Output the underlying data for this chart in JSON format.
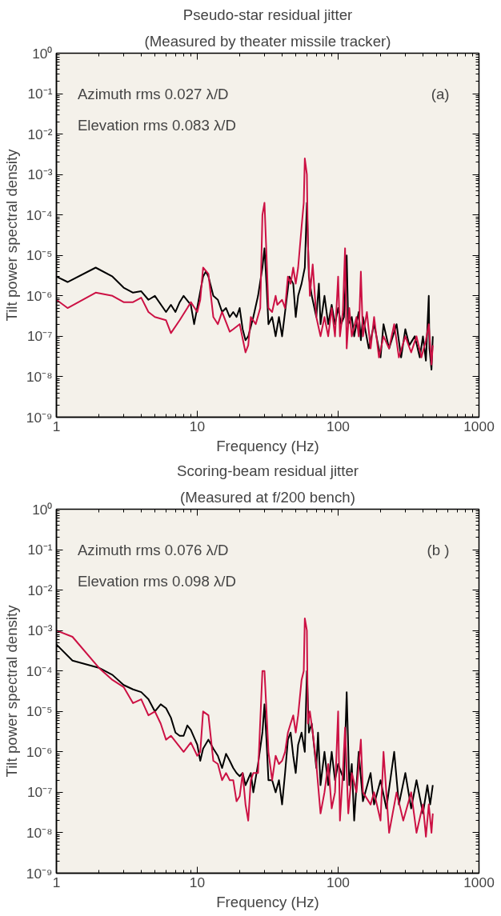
{
  "chart_data": [
    {
      "type": "line",
      "title": "Pseudo-star residual jitter",
      "subtitle": "(Measured by theater missile tracker)",
      "xlabel": "Frequency (Hz)",
      "ylabel": "Tilt power spectral density",
      "log": "xy",
      "xlim": [
        1,
        1000
      ],
      "ylim": [
        1e-09,
        1
      ],
      "xticks": [
        1,
        10,
        100,
        1000
      ],
      "yticks": [
        {
          "value": 1e-09,
          "label": "10⁻⁹"
        },
        {
          "value": 1e-08,
          "label": "10⁻⁸"
        },
        {
          "value": 1e-07,
          "label": "10⁻⁷"
        },
        {
          "value": 1e-06,
          "label": "10⁻⁶"
        },
        {
          "value": 1e-05,
          "label": "10⁻⁵"
        },
        {
          "value": 0.0001,
          "label": "10⁻⁴"
        },
        {
          "value": 0.001,
          "label": "10⁻³"
        },
        {
          "value": 0.01,
          "label": "10⁻²"
        },
        {
          "value": 0.1,
          "label": "10⁻¹"
        },
        {
          "value": 1,
          "label": "10⁰"
        }
      ],
      "annotations": [
        "Azimuth rms  0.027 λ/D",
        "Elevation rms  0.083 λ/D",
        "(a)"
      ],
      "series": [
        {
          "color": "#000000",
          "x": [
            1,
            1.2,
            1.9,
            2.5,
            3,
            3.5,
            4,
            4.5,
            5,
            6,
            6.5,
            7,
            7.5,
            8,
            9,
            9.5,
            11,
            11.5,
            12,
            13,
            14,
            15,
            16,
            17,
            18,
            19,
            20,
            21,
            22,
            23,
            25,
            27,
            29,
            30,
            31,
            32,
            34,
            36,
            38,
            40,
            42,
            44,
            45,
            48,
            50,
            52,
            55,
            58,
            60,
            62,
            65,
            70,
            73,
            75,
            80,
            85,
            90,
            95,
            100,
            105,
            110,
            115,
            118,
            125,
            130,
            140,
            145,
            150,
            165,
            180,
            200,
            210,
            230,
            260,
            280,
            300,
            320,
            350,
            380,
            400,
            420,
            440,
            445,
            460,
            470
          ],
          "values": [
            3e-06,
            2.2e-06,
            5e-06,
            3e-06,
            1.6e-06,
            1.2e-06,
            1.3e-06,
            8e-07,
            1e-06,
            4e-07,
            6e-07,
            4e-07,
            7e-07,
            1e-06,
            6e-07,
            2e-07,
            3e-06,
            4e-06,
            3e-06,
            1e-06,
            8e-07,
            4e-07,
            5e-07,
            3e-07,
            4e-07,
            3e-07,
            5e-07,
            1.5e-07,
            8e-08,
            1e-07,
            3e-07,
            1e-06,
            5e-06,
            1.5e-05,
            2e-06,
            2e-07,
            3e-07,
            1e-07,
            3e-07,
            1e-07,
            4e-07,
            1.5e-06,
            3e-06,
            2e-06,
            3e-07,
            1e-06,
            2e-06,
            5e-06,
            0.0002,
            3e-06,
            1e-06,
            3e-07,
            2e-06,
            2e-07,
            1e-06,
            2e-07,
            6e-07,
            2e-07,
            5e-07,
            2e-07,
            3e-07,
            1e-05,
            2e-07,
            3e-07,
            1e-07,
            4e-07,
            8e-08,
            3e-07,
            5e-08,
            2e-07,
            3e-08,
            2e-07,
            5e-08,
            2e-07,
            3e-08,
            1.5e-07,
            6e-08,
            1e-07,
            3e-08,
            1e-07,
            2.5e-08,
            1e-06,
            5e-08,
            1.5e-08,
            1e-07
          ]
        },
        {
          "color": "#cc1144",
          "x": [
            1,
            1.2,
            1.9,
            2.5,
            3,
            3.5,
            4,
            4.5,
            5,
            6,
            6.5,
            7.5,
            8.5,
            9,
            10,
            10.5,
            11,
            12,
            13,
            14,
            15,
            17,
            18,
            20,
            22,
            23,
            24,
            26,
            28,
            29,
            30,
            31,
            32,
            34,
            36,
            37,
            40,
            42,
            44,
            46,
            48,
            50,
            52,
            55,
            57,
            58,
            60,
            61,
            63,
            66,
            70,
            75,
            80,
            85,
            90,
            95,
            100,
            103,
            108,
            112,
            115,
            120,
            125,
            135,
            140,
            145,
            150,
            160,
            170,
            180,
            195,
            210,
            230,
            250,
            270,
            300,
            330,
            360,
            390,
            420,
            440,
            460,
            470
          ],
          "values": [
            8e-07,
            5e-07,
            1.2e-06,
            1e-06,
            7e-07,
            7e-07,
            9e-07,
            4e-07,
            3e-07,
            2.5e-07,
            1.2e-07,
            2.5e-07,
            5e-07,
            7e-07,
            4e-07,
            8e-07,
            5e-06,
            3.5e-06,
            3e-07,
            2e-07,
            4e-07,
            1.3e-07,
            1.5e-07,
            2e-07,
            4e-08,
            6e-08,
            3e-07,
            2e-07,
            5e-07,
            0.0001,
            0.0002,
            1e-05,
            5e-07,
            4e-07,
            1e-06,
            6e-07,
            8e-07,
            5e-07,
            3e-06,
            2e-06,
            5e-06,
            2e-06,
            5e-06,
            5e-05,
            0.0002,
            0.0025,
            0.001,
            2e-05,
            1e-06,
            6e-06,
            3e-07,
            1e-07,
            3e-07,
            1e-07,
            5e-07,
            1e-07,
            3e-06,
            1e-07,
            4e-07,
            1.5e-05,
            5e-08,
            5e-07,
            1e-07,
            3e-07,
            1e-07,
            4e-06,
            1e-07,
            4e-07,
            5e-08,
            3e-07,
            3e-08,
            1e-07,
            5e-08,
            2e-07,
            3e-08,
            1e-07,
            4e-08,
            1e-07,
            3e-08,
            8e-08,
            2e-07,
            2e-08,
            6e-08
          ]
        }
      ]
    },
    {
      "type": "line",
      "title": "Scoring-beam residual jitter",
      "subtitle": "(Measured at f/200 bench)",
      "xlabel": "Frequency (Hz)",
      "ylabel": "Tilt power spectral density",
      "log": "xy",
      "xlim": [
        1,
        1000
      ],
      "ylim": [
        1e-09,
        1
      ],
      "xticks": [
        1,
        10,
        100,
        1000
      ],
      "yticks": [
        {
          "value": 1e-09,
          "label": "10⁻⁹"
        },
        {
          "value": 1e-08,
          "label": "10⁻⁸"
        },
        {
          "value": 1e-07,
          "label": "10⁻⁷"
        },
        {
          "value": 1e-06,
          "label": "10⁻⁶"
        },
        {
          "value": 1e-05,
          "label": "10⁻⁵"
        },
        {
          "value": 0.0001,
          "label": "10⁻⁴"
        },
        {
          "value": 0.001,
          "label": "10⁻³"
        },
        {
          "value": 0.01,
          "label": "10⁻²"
        },
        {
          "value": 0.1,
          "label": "10⁻¹"
        },
        {
          "value": 1,
          "label": "10⁰"
        }
      ],
      "annotations": [
        "Azimuth rms  0.076 λ/D",
        "Elevation rms  0.098 λ/D",
        "(b )"
      ],
      "series": [
        {
          "color": "#000000",
          "x": [
            1,
            1.3,
            2,
            2.5,
            3,
            3.5,
            4,
            4.5,
            5,
            5.5,
            6,
            6.5,
            7,
            7.5,
            8,
            8.5,
            9,
            10,
            10.5,
            11,
            12,
            13,
            14,
            15,
            16,
            17,
            18,
            19,
            20,
            21,
            22,
            24,
            25,
            27,
            29,
            30,
            31,
            32,
            34,
            36,
            38,
            40,
            42,
            44,
            46,
            48,
            50,
            52,
            55,
            58,
            60,
            62,
            65,
            70,
            72,
            75,
            80,
            85,
            90,
            95,
            100,
            110,
            115,
            120,
            125,
            130,
            140,
            150,
            170,
            180,
            200,
            220,
            250,
            270,
            300,
            330,
            360,
            400,
            430,
            450,
            470
          ],
          "values": [
            0.00045,
            0.00018,
            0.00012,
            8e-05,
            4.5e-05,
            3.5e-05,
            3e-05,
            2e-05,
            1e-05,
            1.5e-05,
            1.2e-05,
            7e-06,
            3e-06,
            2.5e-06,
            2.5e-06,
            4.5e-06,
            3.5e-06,
            1.5e-06,
            6e-07,
            1.2e-06,
            2e-06,
            1.2e-06,
            8e-07,
            4e-07,
            9e-07,
            6e-07,
            4e-07,
            3e-07,
            2.5e-07,
            3e-07,
            1.5e-07,
            3e-07,
            1e-07,
            5e-07,
            3e-06,
            1.5e-05,
            2e-06,
            2e-07,
            2e-07,
            1e-07,
            2e-07,
            5e-08,
            3e-07,
            2e-06,
            3e-06,
            8e-07,
            3e-07,
            1.5e-06,
            3e-06,
            1e-06,
            0.0001,
            3e-06,
            5e-06,
            4e-07,
            3e-06,
            1.5e-07,
            1e-06,
            1.5e-07,
            1e-06,
            2e-07,
            5e-07,
            2e-07,
            3e-05,
            1.5e-07,
            5e-07,
            2e-08,
            1e-06,
            6e-08,
            3e-07,
            5e-08,
            2e-07,
            4e-08,
            1e-06,
            5e-08,
            3e-07,
            4e-08,
            2e-07,
            3e-08,
            1.5e-07,
            5e-08,
            1.5e-07
          ]
        },
        {
          "color": "#cc1144",
          "x": [
            1,
            1.3,
            2,
            2.5,
            3,
            3.5,
            4,
            4.5,
            5,
            5.5,
            6,
            6.5,
            7,
            8,
            9,
            10,
            10.5,
            11,
            12,
            13,
            14,
            15,
            16,
            17,
            18,
            19,
            20,
            21,
            22,
            23,
            24,
            25,
            27,
            29,
            30,
            31,
            32,
            34,
            36,
            38,
            40,
            42,
            44,
            46,
            48,
            50,
            52,
            55,
            57,
            58,
            60,
            61,
            63,
            66,
            70,
            75,
            80,
            85,
            90,
            95,
            100,
            103,
            108,
            112,
            118,
            125,
            135,
            145,
            150,
            170,
            180,
            200,
            210,
            230,
            260,
            290,
            330,
            360,
            400,
            420,
            440,
            460,
            470
          ],
          "values": [
            0.001,
            0.0007,
            0.00012,
            6e-05,
            4e-05,
            1.6e-05,
            2e-05,
            8e-06,
            1e-05,
            5e-06,
            2e-06,
            2.5e-06,
            1.8e-06,
            1e-06,
            1.7e-06,
            8e-07,
            1e-06,
            1e-05,
            8e-06,
            6e-07,
            5e-07,
            2e-07,
            3e-07,
            2e-07,
            2e-07,
            6e-08,
            8e-08,
            3e-07,
            5e-08,
            2e-08,
            2e-07,
            3e-07,
            3e-07,
            0.0001,
            0.0001,
            1e-05,
            1e-06,
            2e-07,
            8e-07,
            5e-07,
            6e-07,
            1e-06,
            3e-06,
            5e-06,
            8e-06,
            3e-06,
            8e-06,
            6e-05,
            0.0001,
            0.002,
            0.001,
            5e-06,
            1e-05,
            3e-06,
            5e-07,
            3e-08,
            1e-07,
            5e-07,
            4e-08,
            1e-07,
            1e-05,
            2e-08,
            3e-07,
            4e-06,
            3e-08,
            3e-07,
            1e-07,
            2e-06,
            1e-07,
            5e-08,
            1e-07,
            2e-08,
            1e-06,
            1e-08,
            1e-07,
            2e-08,
            1e-07,
            1e-08,
            5e-08,
            8e-09,
            5e-08,
            1e-08,
            3e-08
          ]
        }
      ]
    }
  ]
}
